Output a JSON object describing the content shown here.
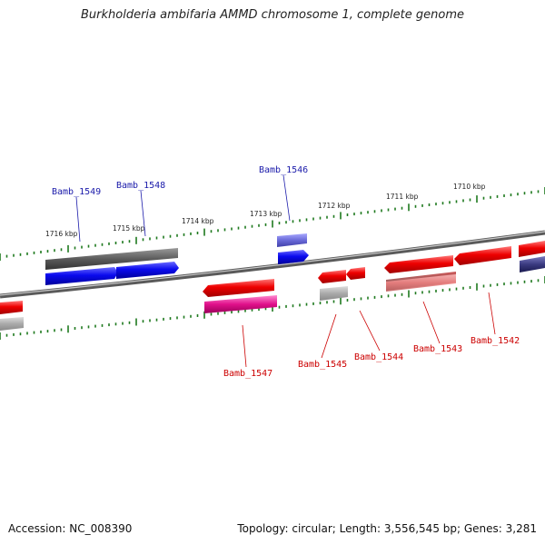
{
  "title": "Burkholderia ambifaria AMMD chromosome 1, complete genome",
  "footer": {
    "accession": "Accession: NC_008390",
    "summary": "Topology: circular; Length: 3,556,545 bp; Genes: 3,281"
  },
  "tick_labels": [
    "1716 kbp",
    "1715 kbp",
    "1714 kbp",
    "1713 kbp",
    "1712 kbp",
    "1711 kbp",
    "1710 kbp"
  ],
  "genes_top": [
    "Bamb_1549",
    "Bamb_1548",
    "Bamb_1546"
  ],
  "genes_bottom": [
    "Bamb_1547",
    "Bamb_1545",
    "Bamb_1544",
    "Bamb_1543",
    "Bamb_1542"
  ],
  "colors": {
    "top_label": "#1a1aaa",
    "bottom_label": "#cc0000",
    "tick": "#1f7a1f",
    "backbone": "#7a7a7a"
  }
}
